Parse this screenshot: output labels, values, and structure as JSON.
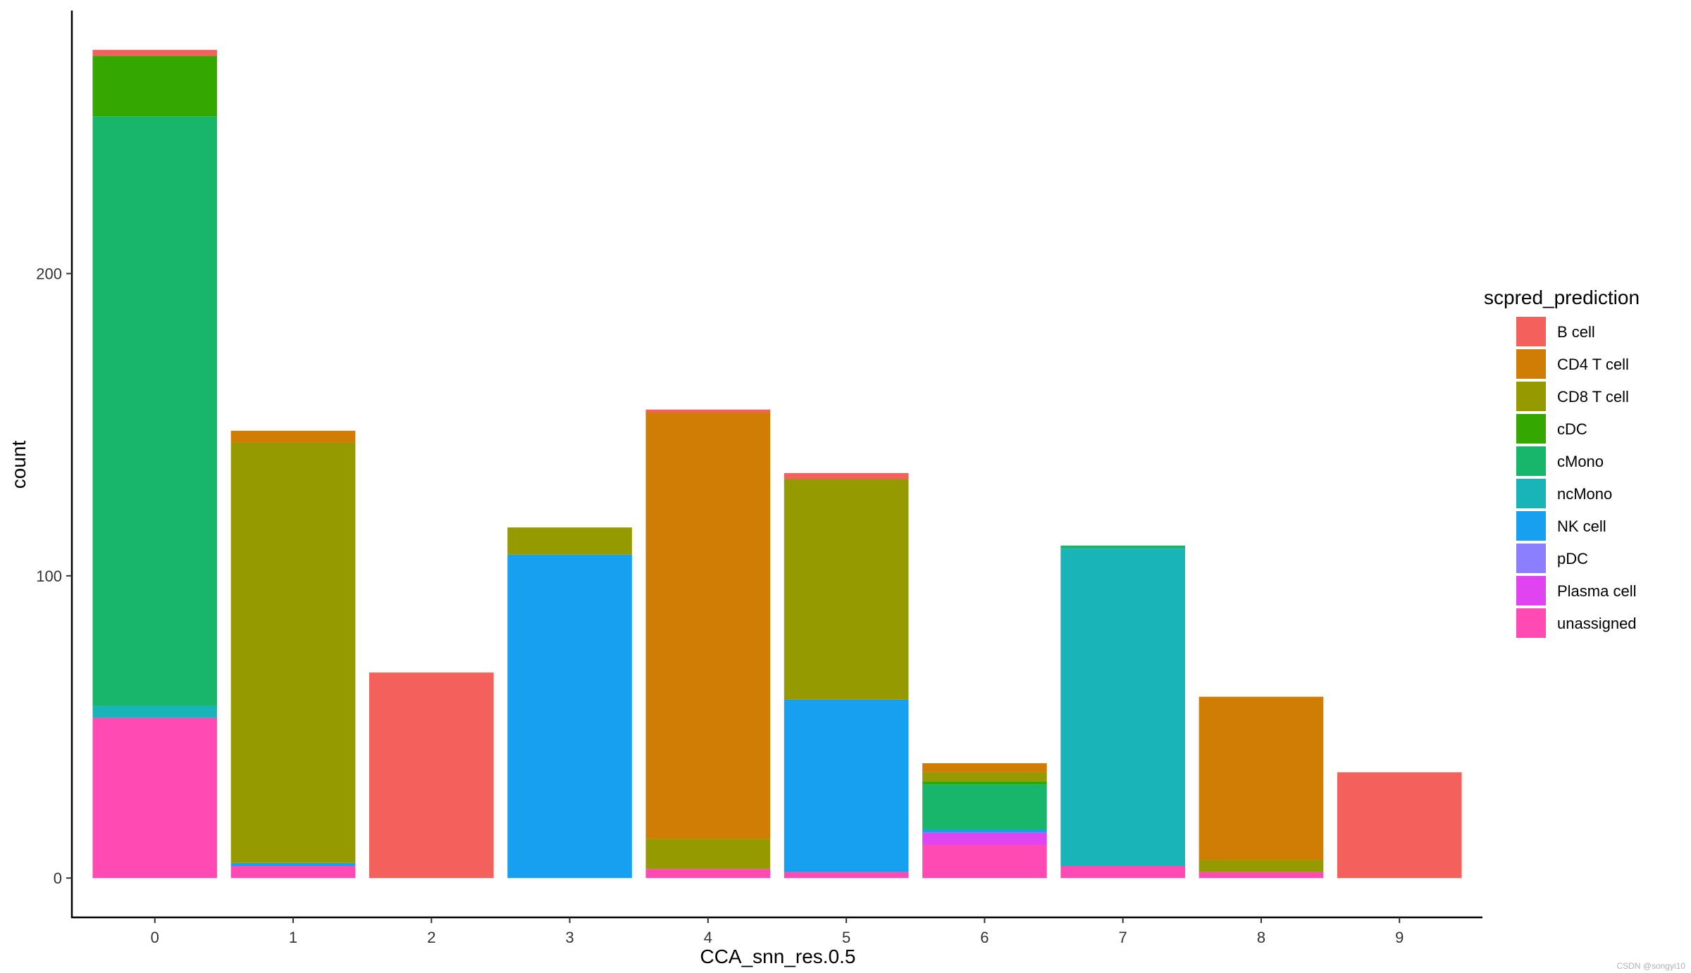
{
  "chart_data": {
    "type": "bar",
    "stacked": true,
    "xlabel": "CCA_snn_res.0.5",
    "ylabel": "count",
    "ylim": [
      -13,
      287
    ],
    "yticks": [
      0,
      100,
      200
    ],
    "categories": [
      "0",
      "1",
      "2",
      "3",
      "4",
      "5",
      "6",
      "7",
      "8",
      "9"
    ],
    "legend_title": "scpred_prediction",
    "legend_position": "right",
    "grid": false,
    "series": [
      {
        "name": "unassigned",
        "color": "#FF4AB4",
        "values": [
          53,
          4,
          0,
          0,
          3,
          2,
          11,
          4,
          2,
          0
        ]
      },
      {
        "name": "Plasma cell",
        "color": "#E043F0",
        "values": [
          0,
          0,
          0,
          0,
          0,
          0,
          4,
          0,
          0,
          0
        ]
      },
      {
        "name": "pDC",
        "color": "#8B7EFF",
        "values": [
          0,
          0,
          0,
          0,
          0,
          0,
          0,
          0,
          0,
          0
        ]
      },
      {
        "name": "NK cell",
        "color": "#17A0F0",
        "values": [
          0,
          1,
          0,
          107,
          0,
          57,
          1,
          0,
          0,
          0
        ]
      },
      {
        "name": "ncMono",
        "color": "#18B4B8",
        "values": [
          4,
          0,
          0,
          0,
          0,
          0,
          0,
          105,
          0,
          0
        ]
      },
      {
        "name": "cMono",
        "color": "#18B66A",
        "values": [
          195,
          0,
          0,
          0,
          0,
          0,
          15,
          1,
          0,
          0
        ]
      },
      {
        "name": "cDC",
        "color": "#35A800",
        "values": [
          20,
          0,
          0,
          0,
          0,
          0,
          1,
          0,
          0,
          0
        ]
      },
      {
        "name": "CD8 T cell",
        "color": "#949A00",
        "values": [
          0,
          139,
          0,
          9,
          10,
          73,
          3,
          0,
          4,
          0
        ]
      },
      {
        "name": "CD4 T cell",
        "color": "#CF7D05",
        "values": [
          0,
          4,
          0,
          0,
          141,
          0,
          3,
          0,
          54,
          0
        ]
      },
      {
        "name": "B cell",
        "color": "#F4605B",
        "values": [
          2,
          0,
          68,
          0,
          1,
          2,
          0,
          0,
          0,
          35
        ]
      }
    ],
    "legend_order": [
      "B cell",
      "CD4 T cell",
      "CD8 T cell",
      "cDC",
      "cMono",
      "ncMono",
      "NK cell",
      "pDC",
      "Plasma cell",
      "unassigned"
    ]
  },
  "watermark": "CSDN @songyi10"
}
